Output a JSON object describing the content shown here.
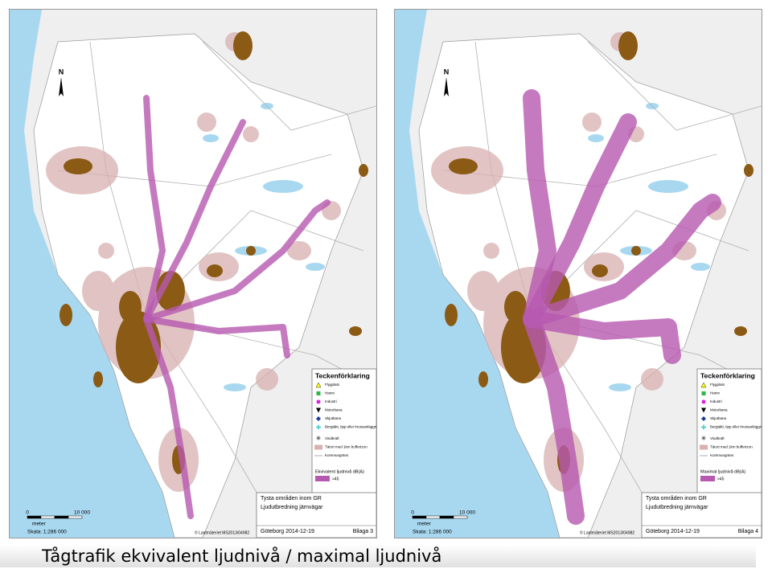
{
  "caption": "Tågtrafik ekvivalent ljudnivå / maximal ljudnivå",
  "maps": [
    {
      "north": "N",
      "legend_title": "Teckenförklaring",
      "legend_items": [
        "Flygplats",
        "Hamn",
        "Industri",
        "Motorbana",
        "Skjutbana",
        "Bergtäkt, tipp eller krossanläggning",
        "Vindkraft",
        "Tätort med 1km buffertzon",
        "Kommungräns"
      ],
      "value_legend_title": "Ekvivalent ljudnivå dB(A)",
      "value_legend_item": ">45",
      "title_block": [
        "Tysta områden inom GR",
        "Ljudutbredning järnvägar"
      ],
      "date": "Göteborg 2014-12-19",
      "appendix": "Bilaga 3",
      "scale_ticks": [
        "0",
        "10 000"
      ],
      "scale_unit": "meter",
      "scale": "Skala: 1:286 000",
      "copyright": "© Lantmäteriet MS2013/04982"
    },
    {
      "north": "N",
      "legend_title": "Teckenförklaring",
      "legend_items": [
        "Flygplats",
        "Hamn",
        "Industri",
        "Motorbana",
        "Skjutbana",
        "Bergtäkt, tipp eller krossanläggning",
        "Vindkraft",
        "Tätort med 1km buffertzon",
        "Kommungräns"
      ],
      "value_legend_title": "Maximal ljudnivå dB(A)",
      "value_legend_item": ">45",
      "title_block": [
        "Tysta områden inom GR",
        "Ljudutbredning järnvägar"
      ],
      "date": "Göteborg 2014-12-19",
      "appendix": "Bilaga 4",
      "scale_ticks": [
        "0",
        "10 000"
      ],
      "scale_unit": "meter",
      "scale": "Skala: 1:286 000",
      "copyright": "© Lantmäteriet MS2013/04982"
    }
  ]
}
